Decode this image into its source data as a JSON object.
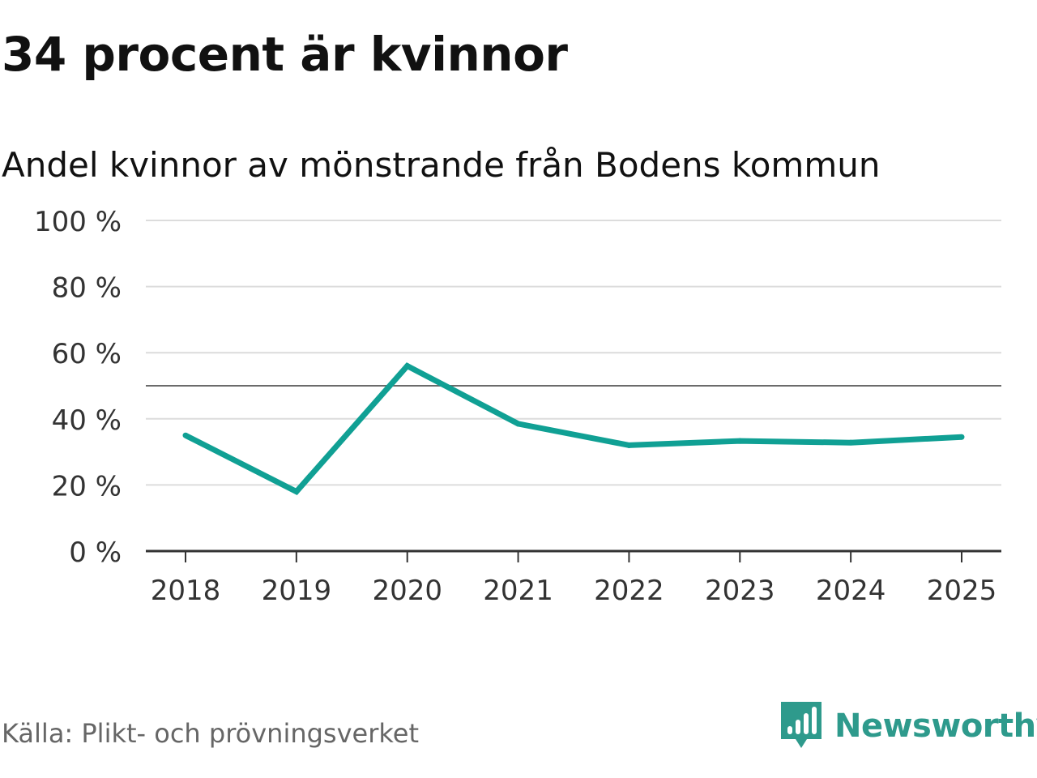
{
  "title": "34 procent är kvinnor",
  "subtitle": "Andel kvinnor av mönstrande från Bodens kommun",
  "source": "Källa: Plikt- och prövningsverket",
  "brand": {
    "name": "Newsworthy",
    "icon": "newsworthy-logo-icon",
    "color": "#2e9a8c"
  },
  "chart_data": {
    "type": "line",
    "x": [
      "2018",
      "2019",
      "2020",
      "2021",
      "2022",
      "2023",
      "2024",
      "2025"
    ],
    "series": [
      {
        "values": [
          35,
          18,
          56,
          38.5,
          32,
          33.3,
          32.8,
          34.5
        ],
        "color": "#10a094"
      }
    ],
    "ylim": [
      0,
      100
    ],
    "yticks": [
      0,
      20,
      40,
      60,
      80,
      100
    ],
    "ytick_labels": [
      "0 %",
      "20 %",
      "40 %",
      "60 %",
      "80 %",
      "100 %"
    ],
    "reference_line": 50,
    "grid": true,
    "xlabel": "",
    "ylabel": ""
  }
}
